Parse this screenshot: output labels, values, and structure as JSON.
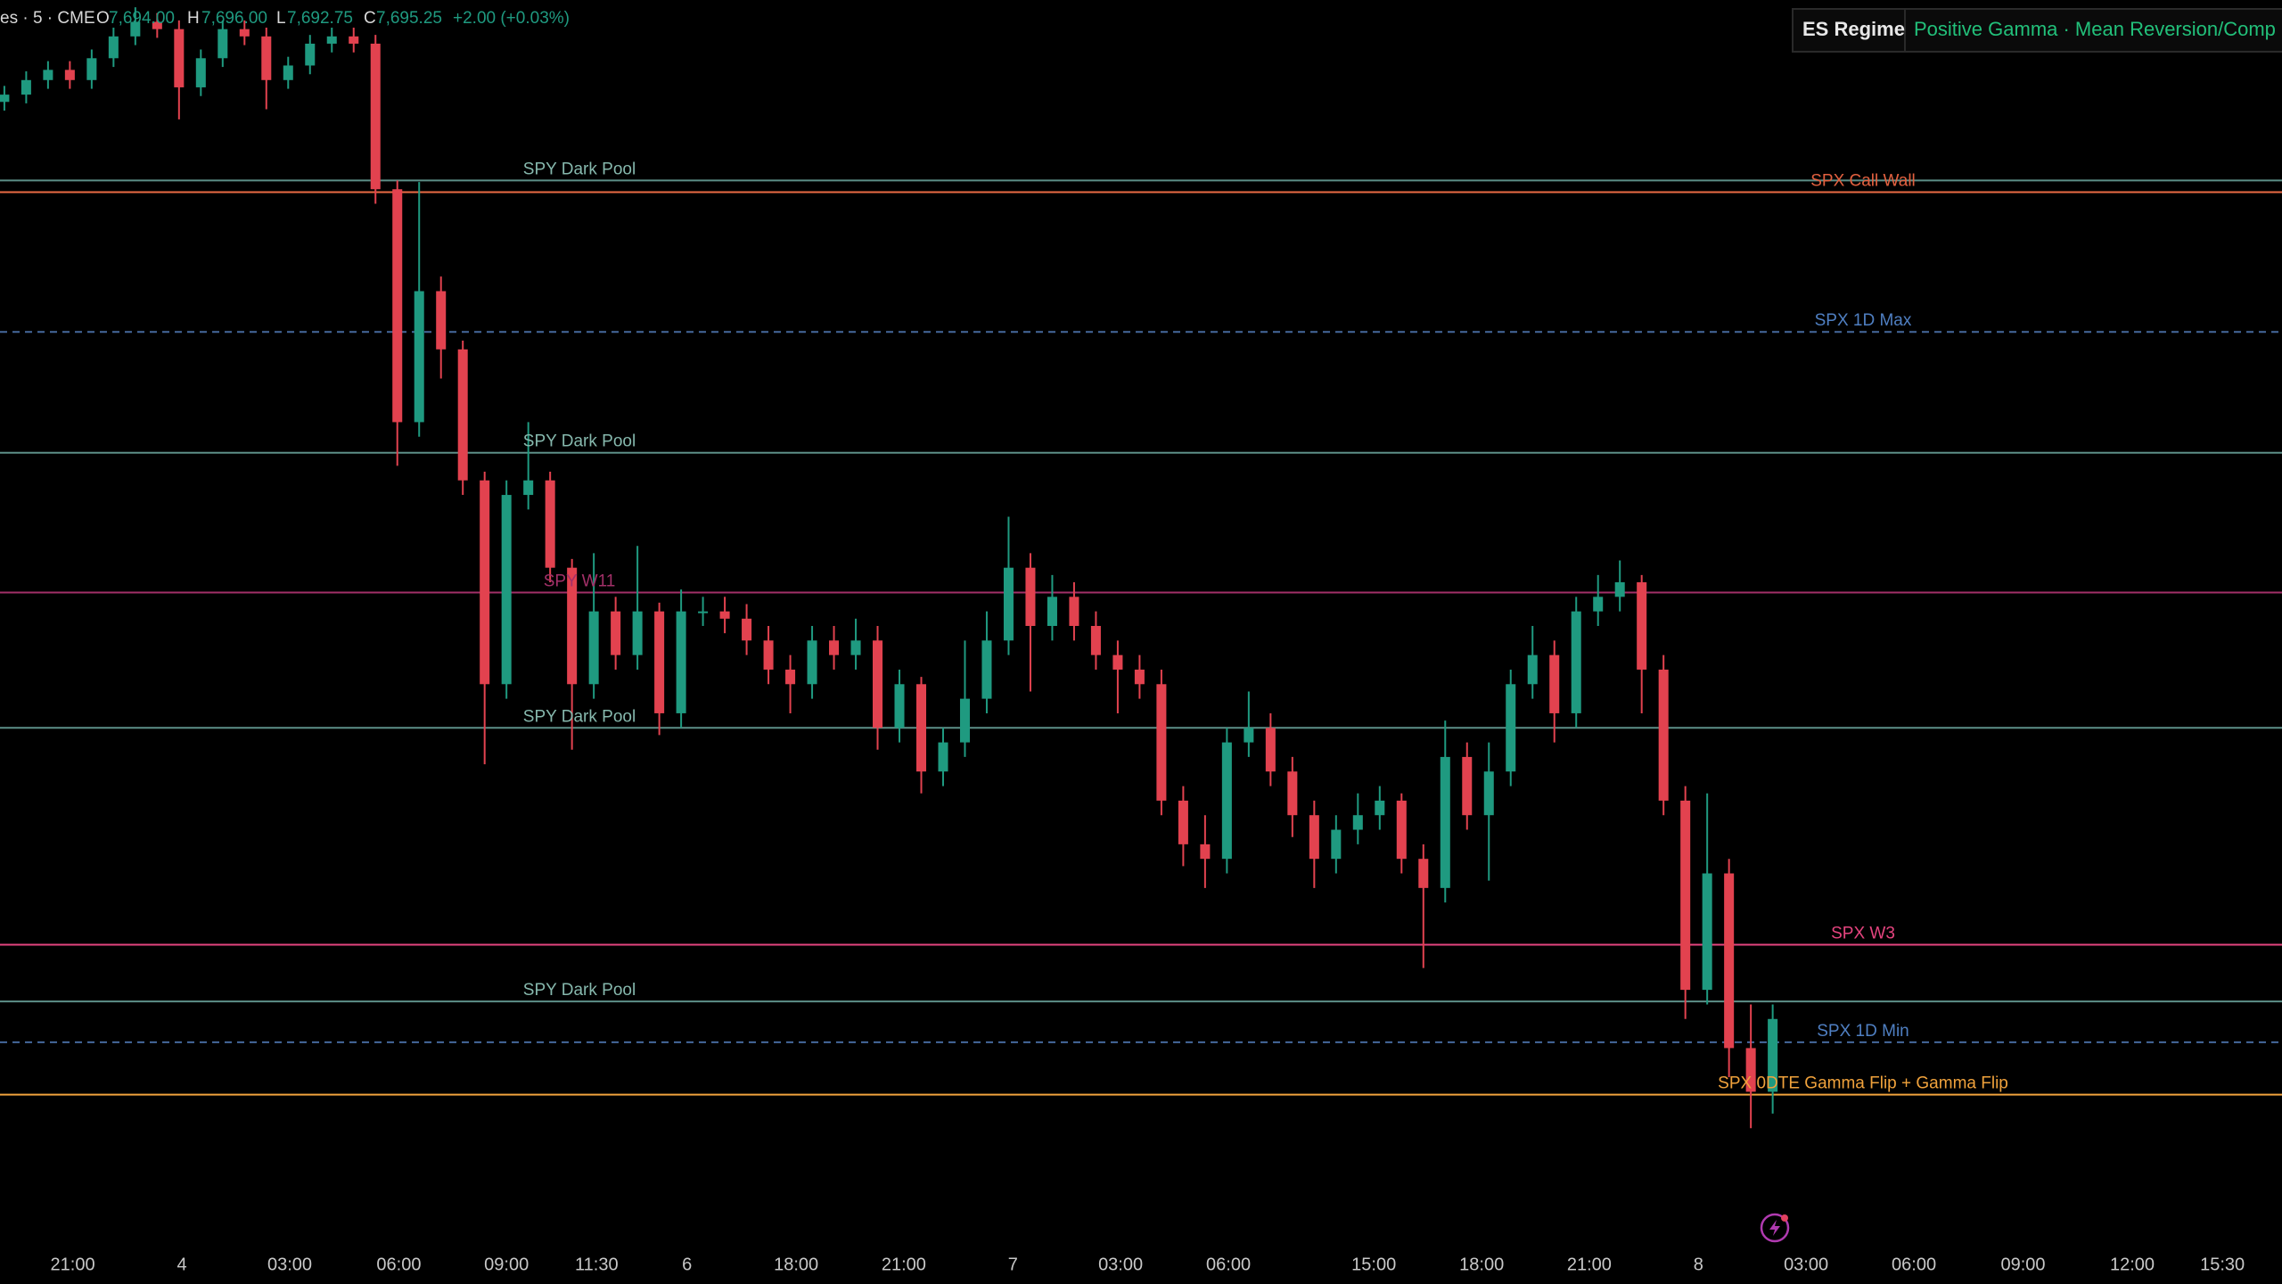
{
  "header": {
    "symbol": "es · 5 · CME",
    "open_label": "O",
    "open": "7,694.00",
    "high_label": "H",
    "high": "7,696.00",
    "low_label": "L",
    "low": "7,692.75",
    "close_label": "C",
    "close": "7,695.25",
    "change": "+2.00 (+0.03%)"
  },
  "regime": {
    "title": "ES Regime",
    "value": "Positive Gamma · Mean Reversion/Comp"
  },
  "chart_data": {
    "type": "candlestick",
    "up_color": "#1f9a80",
    "down_color": "#e2424f",
    "grid": false,
    "open": [
      7691,
      7691.5,
      7692.5,
      7693.2,
      7692.5,
      7694,
      7695.5,
      7696.5,
      7696,
      7692,
      7694,
      7696,
      7695.5,
      7692.5,
      7693.5,
      7695,
      7695.5,
      7695,
      7685,
      7669,
      7678,
      7674,
      7665,
      7651,
      7664,
      7665,
      7659,
      7651,
      7656,
      7653,
      7656,
      7649,
      7656,
      7656,
      7655.5,
      7654,
      7652,
      7651,
      7654,
      7653,
      7654,
      7648,
      7651,
      7645,
      7647,
      7650,
      7654,
      7659,
      7655,
      7657,
      7655,
      7653,
      7652,
      7651,
      7643,
      7640,
      7639,
      7647,
      7648,
      7645,
      7642,
      7639,
      7641,
      7642,
      7643,
      7639,
      7637,
      7646,
      7642,
      7645,
      7651,
      7653,
      7649,
      7656,
      7657,
      7658,
      7652,
      7643,
      7630,
      7638,
      7626,
      7623
    ],
    "high": [
      7692.1,
      7693.1,
      7693.8,
      7693.8,
      7694.6,
      7696.1,
      7697.5,
      7697.1,
      7696.6,
      7694.6,
      7696.6,
      7696.6,
      7696.1,
      7694.1,
      7695.6,
      7696.1,
      7696.1,
      7695.6,
      7685.6,
      7685.5,
      7679,
      7674.6,
      7665.6,
      7665,
      7669,
      7665.6,
      7659.6,
      7660,
      7657,
      7660.5,
      7656.6,
      7657.5,
      7657,
      7657,
      7656.5,
      7655,
      7653,
      7655,
      7655,
      7655.5,
      7655,
      7652,
      7651.5,
      7648,
      7654,
      7656,
      7662.5,
      7660,
      7658.5,
      7658,
      7656,
      7654,
      7653,
      7652,
      7644,
      7642,
      7648,
      7650.5,
      7649,
      7646,
      7643,
      7642,
      7643.5,
      7644,
      7643.5,
      7640,
      7648.5,
      7647,
      7647,
      7652,
      7655,
      7654,
      7657,
      7658.5,
      7659.5,
      7658.5,
      7653,
      7644,
      7643.5,
      7639,
      7629,
      7629
    ],
    "low": [
      7690.4,
      7690.9,
      7691.9,
      7691.9,
      7691.9,
      7693.4,
      7694.9,
      7695.4,
      7689.8,
      7691.4,
      7693.4,
      7694.9,
      7690.5,
      7691.9,
      7692.9,
      7694.4,
      7694.4,
      7684,
      7666,
      7668,
      7672,
      7664,
      7645.5,
      7650,
      7663,
      7658,
      7646.5,
      7650,
      7652,
      7652,
      7647.5,
      7648,
      7655,
      7654.5,
      7653,
      7651,
      7649,
      7650,
      7652,
      7652,
      7646.5,
      7647,
      7643.5,
      7644,
      7646,
      7649,
      7653,
      7650.5,
      7654,
      7654,
      7652,
      7649,
      7650,
      7642,
      7638.5,
      7637,
      7638,
      7646,
      7644,
      7640.5,
      7637,
      7638,
      7640,
      7641,
      7638,
      7631.5,
      7636,
      7641,
      7637.5,
      7644,
      7650,
      7647,
      7648,
      7655,
      7656,
      7649,
      7642,
      7628,
      7629,
      7624,
      7620.5,
      7621.5
    ],
    "close": [
      7691.5,
      7692.5,
      7693.2,
      7692.5,
      7694,
      7695.5,
      7696.5,
      7696,
      7692,
      7694,
      7696,
      7695.5,
      7692.5,
      7693.5,
      7695,
      7695.5,
      7695,
      7685,
      7669,
      7678,
      7674,
      7665,
      7651,
      7664,
      7665,
      7659,
      7651,
      7656,
      7653,
      7656,
      7649,
      7656,
      7656,
      7655.5,
      7654,
      7652,
      7651,
      7654,
      7653,
      7654,
      7648,
      7651,
      7645,
      7647,
      7650,
      7654,
      7659,
      7655,
      7657,
      7655,
      7653,
      7652,
      7651,
      7643,
      7640,
      7639,
      7647,
      7648,
      7645,
      7642,
      7639,
      7641,
      7642,
      7643,
      7639,
      7637,
      7646,
      7642,
      7645,
      7651,
      7653,
      7649,
      7656,
      7657,
      7658,
      7652,
      7643,
      7630,
      7638,
      7626,
      7623,
      7628
    ],
    "xlim": [
      -0.2,
      104.33
    ],
    "ylim": [
      7615,
      7698
    ],
    "xticks": [
      {
        "value": 3.13,
        "label": "21:00"
      },
      {
        "value": 8.13,
        "label": "4"
      },
      {
        "value": 13.07,
        "label": "03:00"
      },
      {
        "value": 18.07,
        "label": "06:00"
      },
      {
        "value": 23,
        "label": "09:00"
      },
      {
        "value": 27.13,
        "label": "11:30"
      },
      {
        "value": 31.27,
        "label": "6"
      },
      {
        "value": 36.27,
        "label": "18:00"
      },
      {
        "value": 41.2,
        "label": "21:00"
      },
      {
        "value": 46.2,
        "label": "7"
      },
      {
        "value": 51.13,
        "label": "03:00"
      },
      {
        "value": 56.07,
        "label": "06:00"
      },
      {
        "value": 62.73,
        "label": "15:00"
      },
      {
        "value": 67.67,
        "label": "18:00"
      },
      {
        "value": 72.6,
        "label": "21:00"
      },
      {
        "value": 77.6,
        "label": "8"
      },
      {
        "value": 82.53,
        "label": "03:00"
      },
      {
        "value": 87.47,
        "label": "06:00"
      },
      {
        "value": 92.47,
        "label": "09:00"
      },
      {
        "value": 97.47,
        "label": "12:00"
      },
      {
        "value": 101.6,
        "label": "15:30"
      }
    ],
    "levels": [
      {
        "name": "SPY Dark Pool",
        "value": 7685.6,
        "color": "#5d8f88",
        "label_color": "#86b8ad",
        "style": "solid",
        "label_at": "left"
      },
      {
        "name": "SPX Call Wall",
        "value": 7684.8,
        "color": "#ea6b45",
        "label_color": "#e2603f",
        "style": "solid",
        "label_at": "right"
      },
      {
        "name": "SPX 1D Max",
        "value": 7675.2,
        "color": "#45689c",
        "label_color": "#4f7fc2",
        "style": "dashed",
        "label_at": "right"
      },
      {
        "name": "SPY Dark Pool",
        "value": 7666.9,
        "color": "#5d8f88",
        "label_color": "#86b8ad",
        "style": "solid",
        "label_at": "left"
      },
      {
        "name": "SPY W11",
        "value": 7657.3,
        "color": "#a23068",
        "label_color": "#a23068",
        "style": "solid",
        "label_at": "left"
      },
      {
        "name": "SPY Dark Pool",
        "value": 7648.0,
        "color": "#5d8f88",
        "label_color": "#86b8ad",
        "style": "solid",
        "label_at": "left"
      },
      {
        "name": "SPX W3",
        "value": 7633.1,
        "color": "#e5447f",
        "label_color": "#e5447f",
        "style": "solid",
        "label_at": "right"
      },
      {
        "name": "SPY Dark Pool",
        "value": 7629.2,
        "color": "#5d8f88",
        "label_color": "#86b8ad",
        "style": "solid",
        "label_at": "left"
      },
      {
        "name": "SPX 1D Min",
        "value": 7626.4,
        "color": "#45689c",
        "label_color": "#4f7fc2",
        "style": "dashed",
        "label_at": "right"
      },
      {
        "name": "SPX 0DTE Gamma Flip + Gamma Flip",
        "value": 7622.8,
        "color": "#f0a23c",
        "label_color": "#f0a23c",
        "style": "solid",
        "label_at": "right"
      }
    ]
  }
}
